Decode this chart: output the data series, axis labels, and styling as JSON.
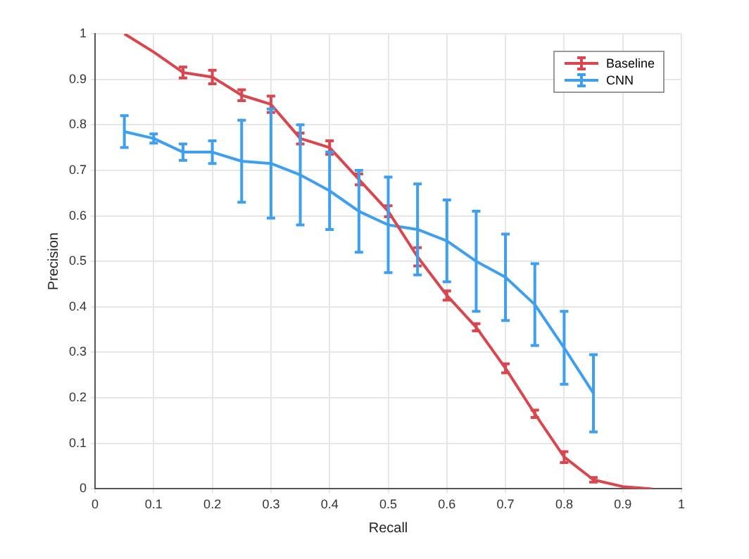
{
  "chart_data": {
    "type": "line",
    "xlabel": "Recall",
    "ylabel": "Precision",
    "xlim": [
      0,
      1
    ],
    "xticks": [
      0,
      0.1,
      0.2,
      0.3,
      0.4,
      0.5,
      0.6,
      0.7,
      0.8,
      0.9,
      1
    ],
    "ylim": [
      0,
      1
    ],
    "yticks": [
      0,
      0.1,
      0.2,
      0.3,
      0.4,
      0.5,
      0.6,
      0.7,
      0.8,
      0.9,
      1
    ],
    "grid": true,
    "legend": "top right",
    "line_style": "solid",
    "series": [
      {
        "name": "Baseline",
        "color": "#d9464e",
        "x": [
          0.05,
          0.1,
          0.15,
          0.2,
          0.25,
          0.3,
          0.35,
          0.4,
          0.45,
          0.5,
          0.55,
          0.6,
          0.65,
          0.7,
          0.75,
          0.8,
          0.85,
          0.9,
          0.95
        ],
        "values": [
          1.0,
          0.96,
          0.915,
          0.905,
          0.865,
          0.845,
          0.77,
          0.75,
          0.68,
          0.61,
          0.51,
          0.425,
          0.355,
          0.265,
          0.165,
          0.07,
          0.02,
          0.005,
          0.0
        ],
        "errors": [
          null,
          null,
          0.012,
          0.015,
          0.012,
          0.018,
          0.012,
          0.015,
          0.012,
          0.012,
          0.02,
          0.01,
          0.008,
          0.01,
          0.008,
          0.012,
          0.005,
          null,
          null
        ]
      },
      {
        "name": "CNN",
        "color": "#3f9fef",
        "x": [
          0.05,
          0.1,
          0.15,
          0.2,
          0.25,
          0.3,
          0.35,
          0.4,
          0.45,
          0.5,
          0.55,
          0.6,
          0.65,
          0.7,
          0.75,
          0.8,
          0.85
        ],
        "values": [
          0.785,
          0.77,
          0.74,
          0.74,
          0.72,
          0.715,
          0.69,
          0.655,
          0.61,
          0.58,
          0.57,
          0.545,
          0.5,
          0.465,
          0.405,
          0.31,
          0.21
        ],
        "errors": [
          0.035,
          0.01,
          0.018,
          0.025,
          0.09,
          0.12,
          0.11,
          0.085,
          0.09,
          0.105,
          0.1,
          0.09,
          0.11,
          0.095,
          0.09,
          0.08,
          0.085
        ]
      }
    ]
  }
}
